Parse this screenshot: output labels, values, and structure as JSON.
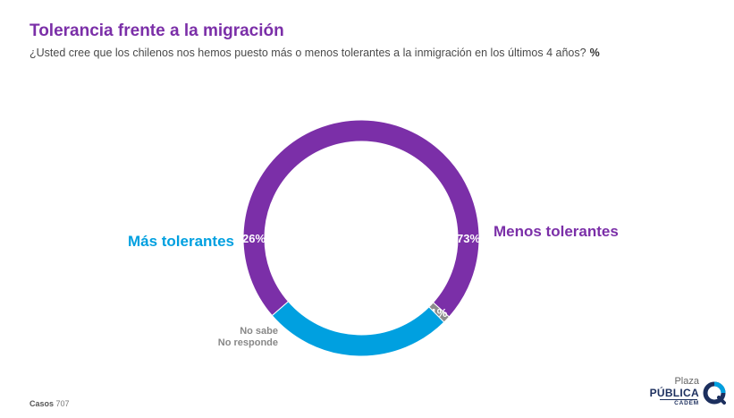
{
  "title": "Tolerancia frente a la migración",
  "subtitle": "¿Usted cree que los chilenos nos hemos puesto más o menos tolerantes a la inmigración en los últimos 4 años?",
  "unit": "%",
  "footer": {
    "label": "Casos",
    "value": "707"
  },
  "logo": {
    "line1": "Plaza",
    "line2": "PÚBLICA",
    "line3": "CADEM"
  },
  "chart_data": {
    "type": "pie",
    "variant": "donut",
    "slices": [
      {
        "name": "Menos tolerantes",
        "value": 73,
        "label": "73%",
        "color": "#7b2fa8"
      },
      {
        "name": "No sabe / No responde",
        "name_lines": [
          "No sabe",
          "No responde"
        ],
        "value": 1,
        "label": "1%",
        "color": "#8c8c8c"
      },
      {
        "name": "Más tolerantes",
        "value": 26,
        "label": "26%",
        "color": "#00a0e0"
      }
    ]
  }
}
